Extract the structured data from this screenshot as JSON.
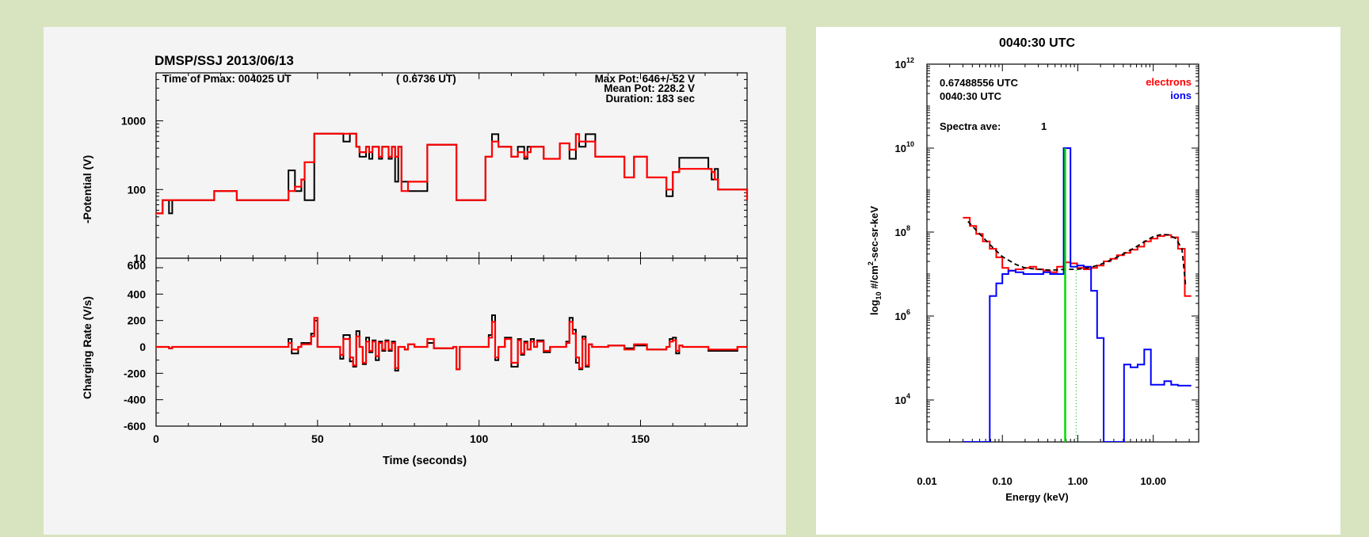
{
  "chart_data": [
    {
      "type": "line",
      "title": "DMSP/SSJ 2013/06/13",
      "annotations": {
        "time_of_pmax": "Time of Pmax: 004025 UT",
        "time_frac": "( 0.6736 UT)",
        "max_pot": "Max Pot: 646+/-52 V",
        "mean_pot": "Mean Pot:   228.2 V",
        "duration": "Duration:   183 sec"
      },
      "xlabel": "Time (seconds)",
      "xlim": [
        0,
        183
      ],
      "x_ticks": [
        "0",
        "50",
        "100",
        "150"
      ],
      "top": {
        "ylabel": "-Potential (V)",
        "yscale": "log",
        "ylim": [
          10,
          5000
        ],
        "y_ticks": [
          "10",
          "100",
          "1000"
        ],
        "series": [
          {
            "color": "#000000",
            "x": [
              0,
              2,
              4,
              5,
              18,
              25,
              40,
              41,
              43,
              45,
              46,
              49,
              57,
              58,
              60,
              62,
              63,
              65,
              66,
              67,
              69,
              70,
              72,
              73,
              74,
              75,
              76,
              78,
              84,
              86,
              93,
              102,
              104,
              106,
              110,
              112,
              114,
              115,
              116,
              120,
              125,
              128,
              130,
              131,
              133,
              136,
              140,
              145,
              148,
              152,
              158,
              160,
              162,
              171,
              172,
              173,
              174,
              183
            ],
            "y": [
              45,
              70,
              45,
              70,
              95,
              70,
              70,
              190,
              95,
              140,
              70,
              650,
              650,
              500,
              650,
              420,
              300,
              420,
              280,
              420,
              280,
              420,
              280,
              420,
              130,
              420,
              130,
              95,
              450,
              450,
              70,
              300,
              640,
              420,
              300,
              420,
              280,
              420,
              420,
              280,
              470,
              280,
              640,
              420,
              640,
              300,
              300,
              150,
              300,
              150,
              80,
              180,
              290,
              200,
              140,
              200,
              100,
              70
            ]
          },
          {
            "color": "#ff0000",
            "x": [
              0,
              2,
              18,
              25,
              40,
              41,
              43,
              45,
              46,
              49,
              57,
              60,
              62,
              63,
              65,
              66,
              67,
              69,
              70,
              72,
              73,
              74,
              75,
              76,
              78,
              84,
              86,
              93,
              102,
              104,
              106,
              110,
              112,
              114,
              115,
              116,
              120,
              125,
              128,
              130,
              131,
              133,
              136,
              140,
              145,
              148,
              152,
              158,
              160,
              162,
              171,
              172,
              173,
              174,
              183
            ],
            "y": [
              45,
              70,
              95,
              70,
              70,
              95,
              110,
              140,
              250,
              650,
              650,
              650,
              420,
              350,
              420,
              350,
              420,
              300,
              420,
              300,
              420,
              300,
              420,
              95,
              130,
              450,
              450,
              70,
              300,
              500,
              420,
              300,
              350,
              300,
              350,
              420,
              280,
              470,
              380,
              640,
              500,
              500,
              300,
              300,
              150,
              300,
              150,
              100,
              180,
              200,
              200,
              180,
              140,
              100,
              70
            ]
          }
        ]
      },
      "bottom": {
        "ylabel": "Charging Rate (V/s)",
        "ylim": [
          -600,
          600
        ],
        "y_ticks": [
          "600",
          "400",
          "200",
          "0",
          "-200",
          "-400",
          "-600"
        ],
        "series": [
          {
            "color": "#000000",
            "x": [
              0,
              4,
              5,
              40,
              41,
              42,
              44,
              45,
              48,
              49,
              50,
              57,
              58,
              60,
              61,
              62,
              63,
              64,
              65,
              66,
              67,
              68,
              69,
              70,
              71,
              72,
              73,
              74,
              75,
              76,
              77,
              78,
              80,
              84,
              86,
              92,
              93,
              94,
              102,
              103,
              104,
              105,
              106,
              108,
              110,
              112,
              113,
              114,
              115,
              116,
              117,
              118,
              120,
              122,
              127,
              128,
              129,
              130,
              131,
              132,
              133,
              134,
              135,
              137,
              140,
              145,
              148,
              152,
              158,
              159,
              160,
              161,
              162,
              163,
              171,
              172,
              173,
              174,
              180,
              183
            ],
            "y": [
              0,
              -10,
              0,
              0,
              60,
              -50,
              0,
              30,
              100,
              200,
              0,
              -90,
              90,
              -110,
              -150,
              120,
              0,
              -130,
              70,
              -40,
              50,
              -100,
              40,
              -30,
              50,
              -30,
              40,
              -180,
              0,
              0,
              -20,
              20,
              0,
              30,
              -10,
              0,
              -170,
              0,
              0,
              90,
              240,
              -100,
              0,
              70,
              -150,
              60,
              -60,
              40,
              -20,
              60,
              0,
              50,
              -40,
              0,
              40,
              220,
              130,
              -120,
              -170,
              80,
              -150,
              20,
              0,
              0,
              10,
              -10,
              10,
              -20,
              0,
              60,
              70,
              -50,
              10,
              0,
              -30,
              -30,
              -30,
              -30,
              0,
              0
            ]
          },
          {
            "color": "#ff0000",
            "x": [
              0,
              4,
              5,
              40,
              41,
              42,
              44,
              45,
              48,
              49,
              50,
              57,
              58,
              60,
              61,
              62,
              63,
              64,
              65,
              66,
              67,
              68,
              69,
              70,
              71,
              72,
              73,
              74,
              75,
              76,
              77,
              78,
              80,
              84,
              86,
              92,
              93,
              94,
              102,
              103,
              104,
              105,
              106,
              108,
              110,
              112,
              113,
              114,
              115,
              116,
              117,
              118,
              120,
              122,
              127,
              128,
              129,
              130,
              131,
              132,
              133,
              134,
              135,
              137,
              140,
              145,
              148,
              152,
              158,
              159,
              160,
              161,
              162,
              163,
              171,
              172,
              173,
              174,
              180,
              183
            ],
            "y": [
              0,
              -10,
              0,
              0,
              30,
              -20,
              0,
              20,
              80,
              220,
              0,
              -60,
              60,
              -80,
              -140,
              80,
              0,
              -120,
              40,
              -30,
              40,
              -70,
              30,
              -20,
              40,
              -20,
              30,
              -160,
              0,
              0,
              -20,
              20,
              0,
              60,
              -10,
              0,
              -170,
              0,
              0,
              70,
              190,
              -80,
              0,
              60,
              -120,
              50,
              -50,
              30,
              -20,
              40,
              0,
              40,
              -30,
              0,
              30,
              190,
              100,
              -80,
              -160,
              60,
              -140,
              20,
              0,
              0,
              10,
              -20,
              20,
              -20,
              0,
              40,
              50,
              -30,
              10,
              0,
              -20,
              -20,
              -20,
              -20,
              0,
              0
            ]
          }
        ]
      }
    },
    {
      "type": "line",
      "title": "0040:30 UTC",
      "annotations": {
        "time_decimal": "0.67488556 UTC",
        "time_hms": "0040:30 UTC",
        "spectra_ave_label": "Spectra ave:",
        "spectra_ave_value": "1"
      },
      "legend": [
        {
          "name": "electrons",
          "color": "#ff0000"
        },
        {
          "name": "ions",
          "color": "#0000ff"
        }
      ],
      "xlabel": "Energy (keV)",
      "ylabel": "log10 #/cm2-sec-sr-keV",
      "ylabel_parts": {
        "pre": "log",
        "sub": "10",
        "mid": " #/cm",
        "sup": "2",
        "post": "-sec-sr-keV"
      },
      "xscale": "log",
      "yscale": "log",
      "xlim": [
        0.01,
        40
      ],
      "ylim": [
        1000,
        1000000000000
      ],
      "x_ticks": [
        "0.01",
        "0.10",
        "1.00",
        "10.00"
      ],
      "y_ticks": [
        {
          "value": 1000000000000,
          "base": "10",
          "exp": "12"
        },
        {
          "value": 10000000000,
          "base": "10",
          "exp": "10"
        },
        {
          "value": 100000000,
          "base": "10",
          "exp": "8"
        },
        {
          "value": 1000000,
          "base": "10",
          "exp": "6"
        },
        {
          "value": 10000,
          "base": "10",
          "exp": "4"
        }
      ],
      "series": [
        {
          "name": "electrons",
          "color": "#ff0000",
          "x": [
            0.03,
            0.037,
            0.045,
            0.055,
            0.068,
            0.083,
            0.1,
            0.12,
            0.15,
            0.19,
            0.23,
            0.28,
            0.35,
            0.43,
            0.53,
            0.65,
            0.8,
            0.98,
            1.2,
            1.5,
            1.8,
            2.2,
            2.7,
            3.3,
            4.1,
            5.0,
            6.2,
            7.6,
            9.3,
            11.4,
            14.0,
            17.3,
            21.3,
            26.2
          ],
          "y": [
            220000000.0,
            140000000.0,
            90000000.0,
            60000000.0,
            40000000.0,
            25000000.0,
            14000000.0,
            12000000.0,
            13000000.0,
            14000000.0,
            15000000.0,
            13000000.0,
            12000000.0,
            11000000.0,
            15000000.0,
            19000000.0,
            18000000.0,
            14000000.0,
            13000000.0,
            14000000.0,
            16000000.0,
            20000000.0,
            23000000.0,
            28000000.0,
            32000000.0,
            38000000.0,
            45000000.0,
            60000000.0,
            70000000.0,
            80000000.0,
            85000000.0,
            75000000.0,
            40000000.0,
            3000000.0
          ]
        },
        {
          "name": "ions",
          "color": "#0000ff",
          "x": [
            0.03,
            0.045,
            0.055,
            0.068,
            0.083,
            0.1,
            0.12,
            0.15,
            0.19,
            0.23,
            0.28,
            0.35,
            0.43,
            0.53,
            0.65,
            0.8,
            0.98,
            1.2,
            1.5,
            1.8,
            2.2,
            2.7,
            3.3,
            4.1,
            5.0,
            6.2,
            7.6,
            9.3,
            11.4,
            14.0,
            17.3,
            21.3,
            26.2
          ],
          "y": [
            1000,
            1000,
            1000,
            3000000.0,
            6000000.0,
            10000000.0,
            12000000.0,
            11000000.0,
            10000000.0,
            10000000.0,
            10000000.0,
            11000000.0,
            10000000.0,
            10000000.0,
            10000000000.0,
            15000000.0,
            16000000.0,
            15000000.0,
            4000000.0,
            300000.0,
            1000,
            1000,
            1000,
            70000.0,
            60000.0,
            70000.0,
            160000.0,
            23000.0,
            23000.0,
            28000.0,
            23000.0,
            22000.0,
            22000.0
          ]
        },
        {
          "name": "fit",
          "color": "#000000",
          "style": "dashed",
          "x": [
            0.035,
            0.05,
            0.07,
            0.1,
            0.15,
            0.2,
            0.3,
            0.4,
            0.5,
            0.7,
            1.0,
            1.5,
            2.0,
            3.0,
            4.0,
            6.0,
            8.0,
            10.0,
            13.0,
            16.0,
            20.0,
            24.0,
            27.0
          ],
          "y": [
            180000000.0,
            90000000.0,
            48000000.0,
            26000000.0,
            17000000.0,
            14000000.0,
            13000000.0,
            12500000.0,
            12500000.0,
            13000000.0,
            13000000.0,
            14500000.0,
            17000000.0,
            23000000.0,
            30000000.0,
            45000000.0,
            62000000.0,
            78000000.0,
            88000000.0,
            86000000.0,
            70000000.0,
            40000000.0,
            5000000.0
          ]
        },
        {
          "name": "green-line",
          "color": "#00dd00",
          "x": [
            0.68,
            0.68
          ],
          "y": [
            1000,
            10000000000.0
          ]
        },
        {
          "name": "dotted-line",
          "color": "#00aa00",
          "style": "dotted",
          "x": [
            0.95,
            0.95
          ],
          "y": [
            1000,
            17000000.0
          ]
        }
      ]
    }
  ]
}
